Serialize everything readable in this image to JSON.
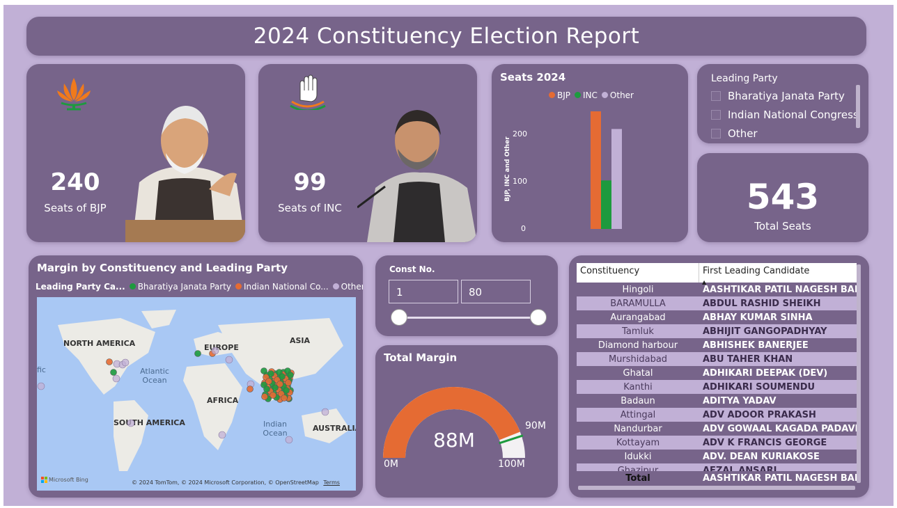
{
  "title": "2024 Constituency Election Report",
  "bjp_card": {
    "value": "240",
    "label": "Seats of BJP"
  },
  "inc_card": {
    "value": "99",
    "label": "Seats of INC"
  },
  "seats_chart": {
    "title": "Seats 2024",
    "legend": [
      "BJP",
      "INC",
      "Other"
    ],
    "ylabel": "BJP, INC and Other",
    "ticks": [
      "200",
      "100",
      "0"
    ]
  },
  "chart_data": {
    "type": "bar",
    "title": "Seats 2024",
    "ylabel": "BJP, INC and Other",
    "ylim": [
      0,
      240
    ],
    "series": [
      {
        "name": "BJP",
        "values": [
          240
        ],
        "color": "#e56b33"
      },
      {
        "name": "INC",
        "values": [
          99
        ],
        "color": "#1d9a3e"
      },
      {
        "name": "Other",
        "values": [
          204
        ],
        "color": "#c1b0d6"
      }
    ]
  },
  "leading_party": {
    "title": "Leading Party",
    "options": [
      "Bharatiya Janata Party",
      "Indian National Congress",
      "Other"
    ]
  },
  "total_seats": {
    "value": "543",
    "label": "Total Seats"
  },
  "map": {
    "title": "Margin by Constituency and Leading Party",
    "legend_title": "Leading Party Ca...",
    "legend": [
      {
        "label": "Bharatiya Janata Party",
        "color": "#1d9a3e"
      },
      {
        "label": "Indian National Co...",
        "color": "#e56b33"
      },
      {
        "label": "Other",
        "color": "#c1b0d6"
      }
    ],
    "labels": {
      "north_america": "NORTH AMERICA",
      "europe": "EUROPE",
      "asia": "ASIA",
      "africa": "AFRICA",
      "south_america": "SOUTH AMERICA",
      "australia": "AUSTRALIA",
      "atlantic": "Atlantic Ocean",
      "indian": "Indian Ocean",
      "pacific_partial": "fic"
    },
    "footer_brand": "Microsoft Bing",
    "footer_credit": "© 2024 TomTom, © 2024 Microsoft Corporation, © OpenStreetMap",
    "footer_terms": "Terms"
  },
  "const_filter": {
    "label": "Const No.",
    "min": "1",
    "max": "80"
  },
  "gauge": {
    "title": "Total Margin",
    "value_label": "88M",
    "min_label": "0M",
    "max_label": "100M",
    "target_label": "90M",
    "value": 88,
    "min": 0,
    "max": 100,
    "target": 90
  },
  "table": {
    "col1": "Constituency",
    "col2": "First Leading Candidate",
    "rows": [
      [
        "Hingoli",
        "AASHTIKAR PATIL NAGESH BAPURAO"
      ],
      [
        "BARAMULLA",
        "ABDUL RASHID SHEIKH"
      ],
      [
        "Aurangabad",
        "ABHAY KUMAR SINHA"
      ],
      [
        "Tamluk",
        "ABHIJIT GANGOPADHYAY"
      ],
      [
        "Diamond harbour",
        "ABHISHEK BANERJEE"
      ],
      [
        "Murshidabad",
        "ABU TAHER KHAN"
      ],
      [
        "Ghatal",
        "ADHIKARI DEEPAK (DEV)"
      ],
      [
        "Kanthi",
        "ADHIKARI SOUMENDU"
      ],
      [
        "Badaun",
        "ADITYA YADAV"
      ],
      [
        "Attingal",
        "ADV ADOOR PRAKASH"
      ],
      [
        "Nandurbar",
        "ADV GOWAAL KAGADA PADAVI"
      ],
      [
        "Kottayam",
        "ADV K FRANCIS GEORGE"
      ],
      [
        "Idukki",
        "ADV. DEAN KURIAKOSE"
      ],
      [
        "Ghazipur",
        "AFZAL ANSARI"
      ]
    ],
    "total_label": "Total",
    "total_value": "AASHTIKAR PATIL NAGESH BAPURAO"
  }
}
